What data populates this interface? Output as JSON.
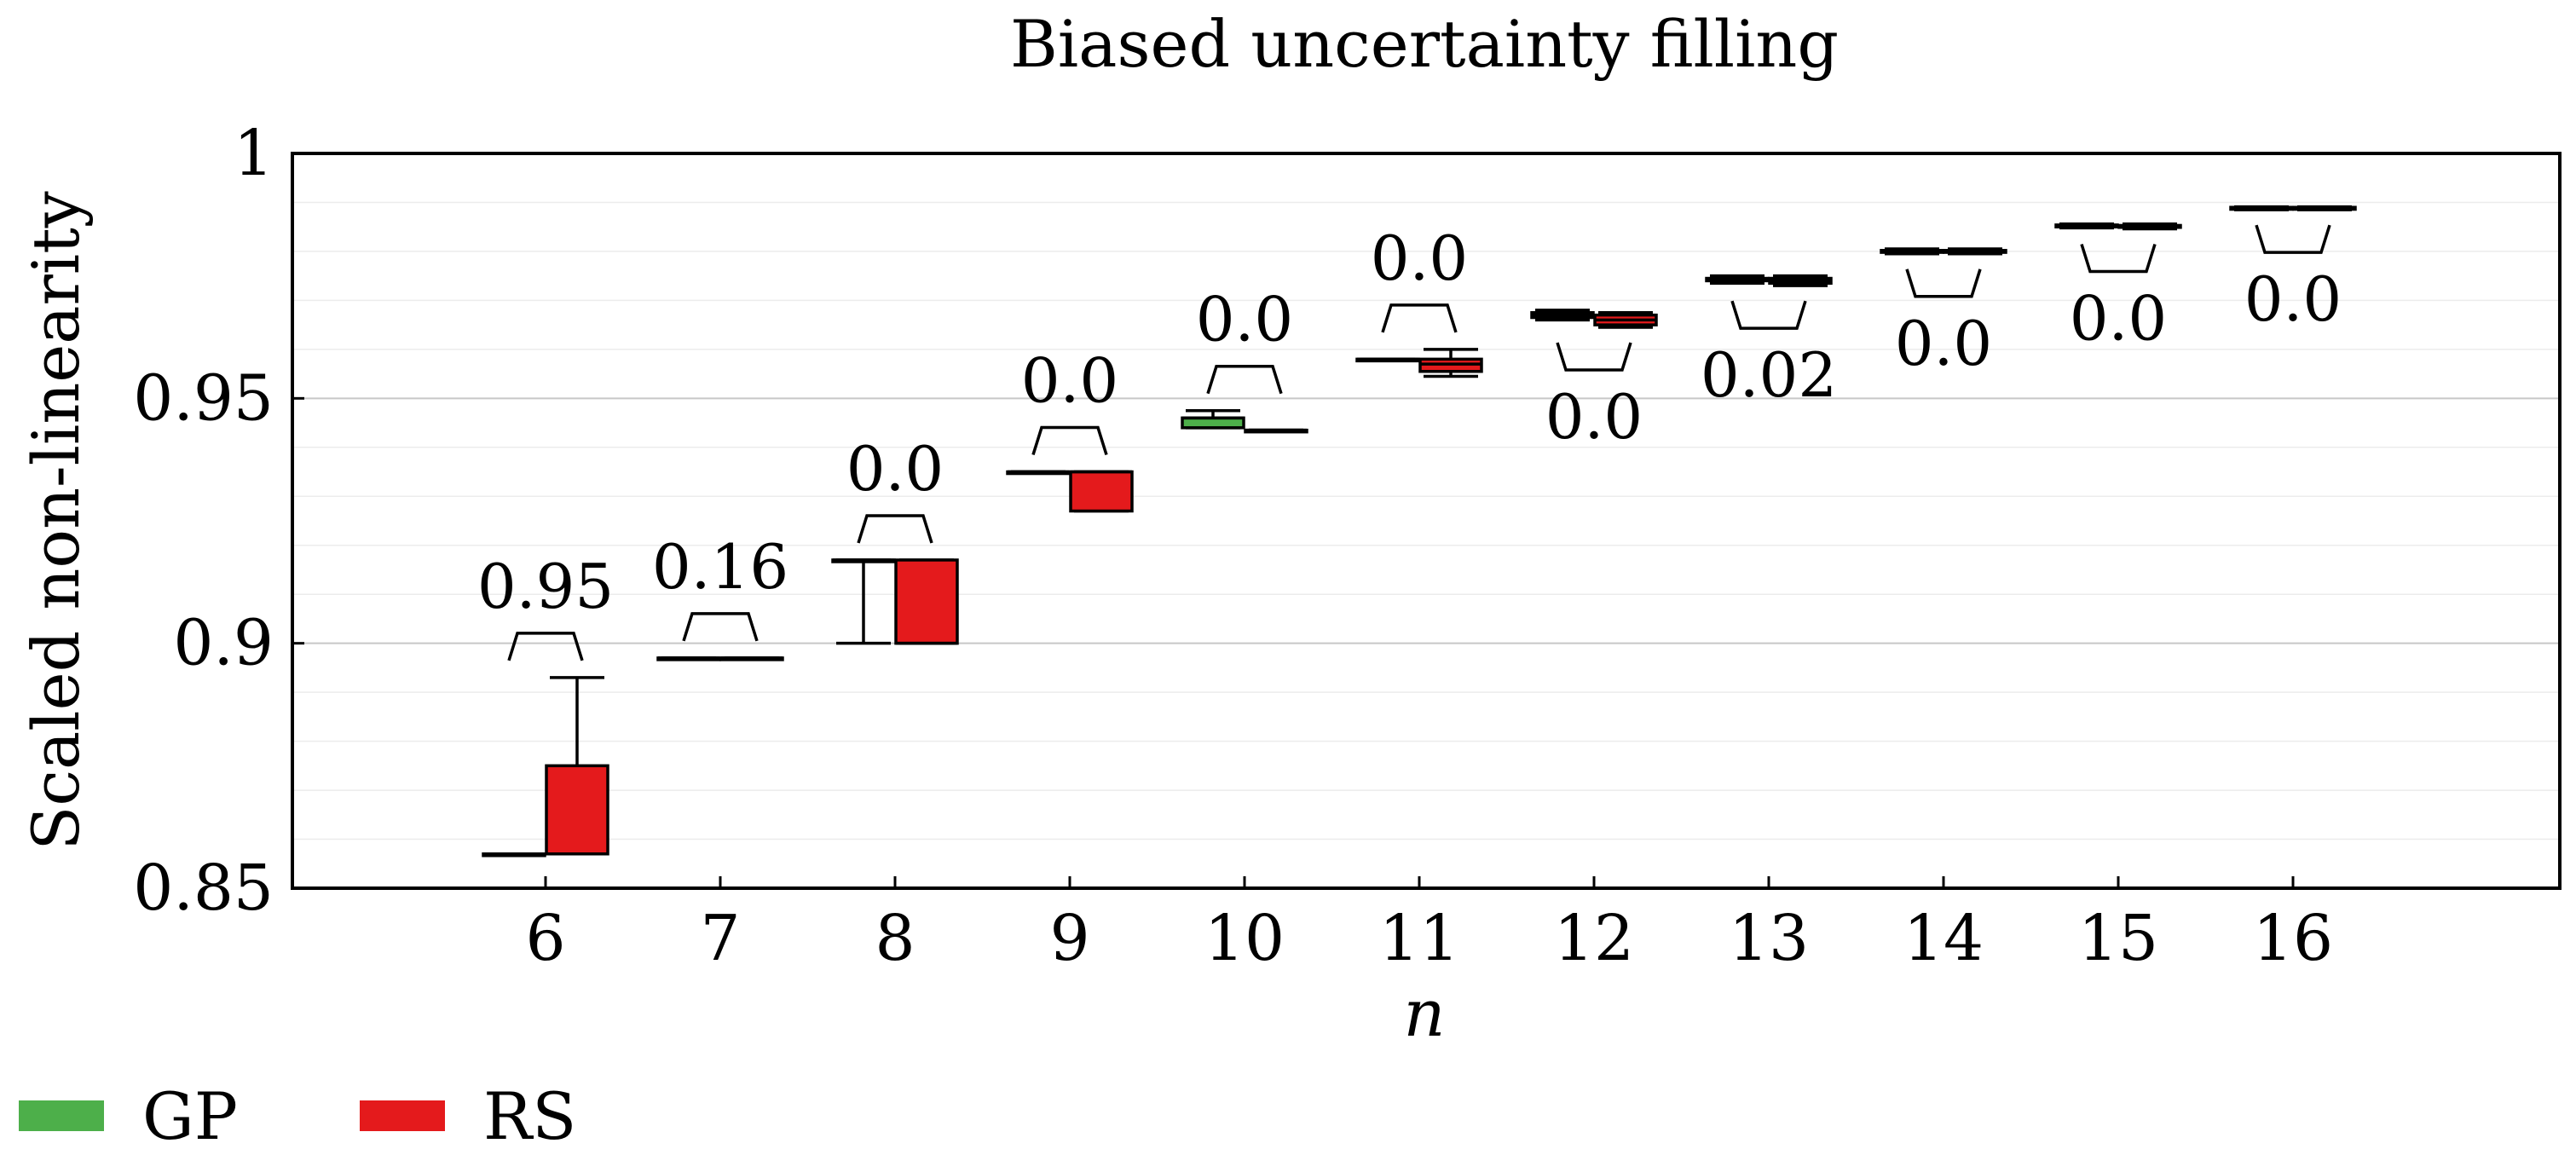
{
  "chart_data": {
    "type": "box",
    "title": "Biased uncertainty filling",
    "xlabel": "n",
    "ylabel": "Scaled non-linearity",
    "ylim": [
      0.85,
      1.0
    ],
    "yticks": [
      0.85,
      0.9,
      0.95,
      1.0
    ],
    "ytick_labels": [
      "0.85",
      "0.9",
      "0.95",
      "1"
    ],
    "categories": [
      "6",
      "7",
      "8",
      "9",
      "10",
      "11",
      "12",
      "13",
      "14",
      "15",
      "16"
    ],
    "grid": "horizontal",
    "legend_position": "bottom-left",
    "colors": {
      "GP": "#4daf4a",
      "RS": "#e41a1c"
    },
    "series": [
      {
        "name": "GP",
        "boxes": [
          {
            "n": "6",
            "whisker_low": 0.857,
            "q1": 0.857,
            "median": 0.857,
            "q3": 0.857,
            "whisker_high": 0.857
          },
          {
            "n": "7",
            "whisker_low": 0.897,
            "q1": 0.897,
            "median": 0.897,
            "q3": 0.897,
            "whisker_high": 0.897
          },
          {
            "n": "8",
            "whisker_low": 0.9,
            "q1": 0.917,
            "median": 0.917,
            "q3": 0.917,
            "whisker_high": 0.917
          },
          {
            "n": "9",
            "whisker_low": 0.935,
            "q1": 0.935,
            "median": 0.935,
            "q3": 0.935,
            "whisker_high": 0.935
          },
          {
            "n": "10",
            "whisker_low": 0.944,
            "q1": 0.944,
            "median": 0.946,
            "q3": 0.946,
            "whisker_high": 0.9475
          },
          {
            "n": "11",
            "whisker_low": 0.958,
            "q1": 0.958,
            "median": 0.958,
            "q3": 0.958,
            "whisker_high": 0.958
          },
          {
            "n": "12",
            "whisker_low": 0.966,
            "q1": 0.9665,
            "median": 0.967,
            "q3": 0.9675,
            "whisker_high": 0.968
          },
          {
            "n": "13",
            "whisker_low": 0.9735,
            "q1": 0.974,
            "median": 0.9742,
            "q3": 0.9745,
            "whisker_high": 0.975
          },
          {
            "n": "14",
            "whisker_low": 0.9795,
            "q1": 0.9798,
            "median": 0.98,
            "q3": 0.9802,
            "whisker_high": 0.9805
          },
          {
            "n": "15",
            "whisker_low": 0.9848,
            "q1": 0.985,
            "median": 0.9852,
            "q3": 0.9854,
            "whisker_high": 0.9856
          },
          {
            "n": "16",
            "whisker_low": 0.9885,
            "q1": 0.9886,
            "median": 0.9888,
            "q3": 0.989,
            "whisker_high": 0.9891
          }
        ]
      },
      {
        "name": "RS",
        "boxes": [
          {
            "n": "6",
            "whisker_low": 0.857,
            "q1": 0.857,
            "median": 0.857,
            "q3": 0.875,
            "whisker_high": 0.893
          },
          {
            "n": "7",
            "whisker_low": 0.897,
            "q1": 0.897,
            "median": 0.897,
            "q3": 0.897,
            "whisker_high": 0.897
          },
          {
            "n": "8",
            "whisker_low": 0.9,
            "q1": 0.9,
            "median": 0.9,
            "q3": 0.917,
            "whisker_high": 0.917
          },
          {
            "n": "9",
            "whisker_low": 0.927,
            "q1": 0.927,
            "median": 0.935,
            "q3": 0.935,
            "whisker_high": 0.935
          },
          {
            "n": "10",
            "whisker_low": 0.9435,
            "q1": 0.9435,
            "median": 0.9435,
            "q3": 0.9435,
            "whisker_high": 0.9435
          },
          {
            "n": "11",
            "whisker_low": 0.9545,
            "q1": 0.9555,
            "median": 0.957,
            "q3": 0.958,
            "whisker_high": 0.96
          },
          {
            "n": "12",
            "whisker_low": 0.9645,
            "q1": 0.965,
            "median": 0.966,
            "q3": 0.967,
            "whisker_high": 0.9675
          },
          {
            "n": "13",
            "whisker_low": 0.973,
            "q1": 0.9735,
            "median": 0.974,
            "q3": 0.9745,
            "whisker_high": 0.975
          },
          {
            "n": "14",
            "whisker_low": 0.9795,
            "q1": 0.9798,
            "median": 0.98,
            "q3": 0.9802,
            "whisker_high": 0.9805
          },
          {
            "n": "15",
            "whisker_low": 0.9846,
            "q1": 0.9849,
            "median": 0.9851,
            "q3": 0.9853,
            "whisker_high": 0.9856
          },
          {
            "n": "16",
            "whisker_low": 0.9885,
            "q1": 0.9886,
            "median": 0.9888,
            "q3": 0.989,
            "whisker_high": 0.9891
          }
        ]
      }
    ],
    "significance": [
      {
        "n": "6",
        "p_value": "0.95",
        "position": "above"
      },
      {
        "n": "7",
        "p_value": "0.16",
        "position": "above"
      },
      {
        "n": "8",
        "p_value": "0.0",
        "position": "above"
      },
      {
        "n": "9",
        "p_value": "0.0",
        "position": "above"
      },
      {
        "n": "10",
        "p_value": "0.0",
        "position": "above"
      },
      {
        "n": "11",
        "p_value": "0.0",
        "position": "above"
      },
      {
        "n": "12",
        "p_value": "0.0",
        "position": "below"
      },
      {
        "n": "13",
        "p_value": "0.02",
        "position": "below"
      },
      {
        "n": "14",
        "p_value": "0.0",
        "position": "below"
      },
      {
        "n": "15",
        "p_value": "0.0",
        "position": "below"
      },
      {
        "n": "16",
        "p_value": "0.0",
        "position": "below"
      }
    ],
    "legend": [
      {
        "label": "GP",
        "color": "#4daf4a"
      },
      {
        "label": "RS",
        "color": "#e41a1c"
      }
    ]
  }
}
